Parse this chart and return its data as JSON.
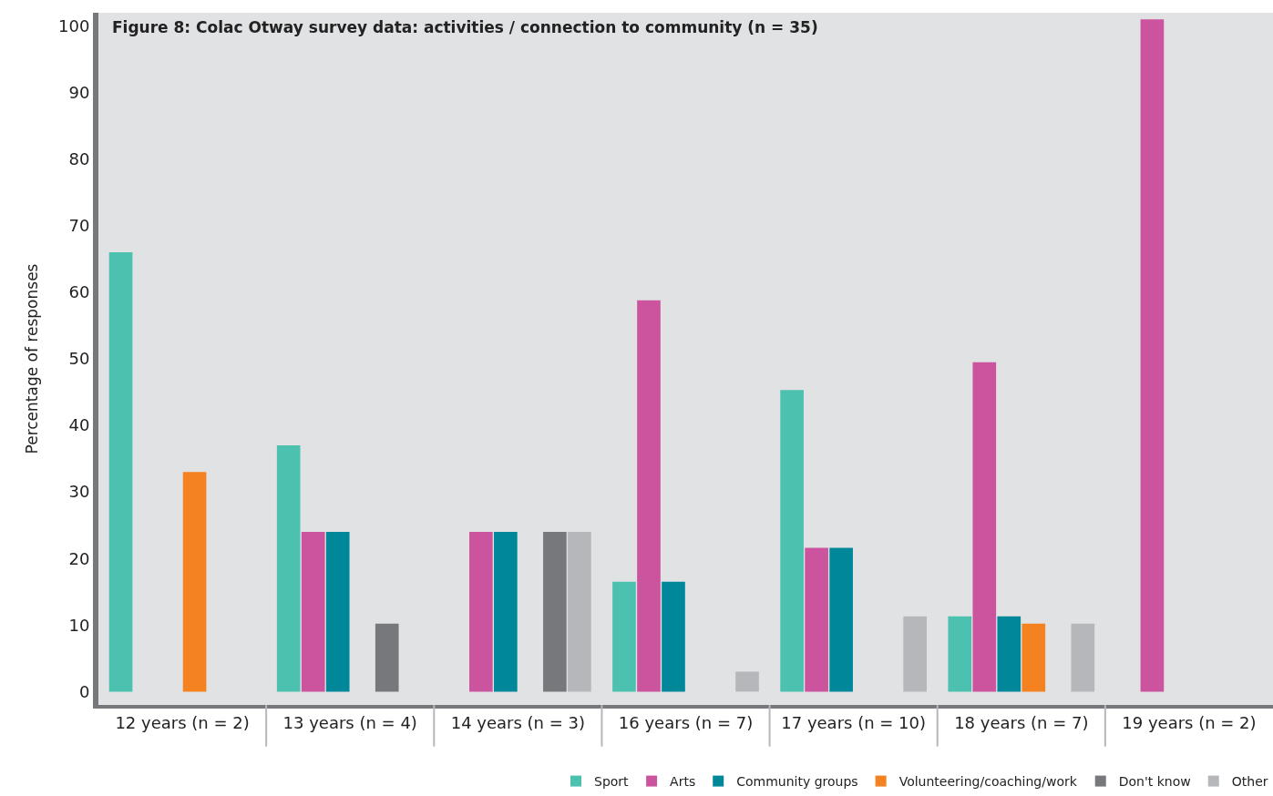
{
  "chart_data": {
    "type": "bar",
    "title": "Figure 8: Colac Otway survey data: activities / connection to community (n = 35)",
    "ylabel": "Percentage of responses",
    "categories": [
      "12 years (n = 2)",
      "13 years (n = 4)",
      "14 years (n = 3)",
      "16 years (n = 7)",
      "17 years (n = 10)",
      "18 years (n = 7)",
      "19 years (n = 2)"
    ],
    "series": [
      {
        "name": "Sport",
        "color": "#4cc1b0",
        "values": [
          66,
          37,
          0,
          16.5,
          45.3,
          11.3,
          0
        ]
      },
      {
        "name": "Arts",
        "color": "#cc549e",
        "values": [
          0,
          24,
          24,
          58.8,
          21.6,
          49.5,
          101
        ]
      },
      {
        "name": "Community groups",
        "color": "#00889a",
        "values": [
          0,
          24,
          24,
          16.5,
          21.6,
          11.3,
          0
        ]
      },
      {
        "name": "Volunteering/coaching/work",
        "color": "#f58220",
        "values": [
          33,
          0,
          0,
          0,
          0,
          10.2,
          0
        ]
      },
      {
        "name": "Don't know",
        "color": "#77787b",
        "values": [
          0,
          10.2,
          24,
          0,
          0,
          0,
          0
        ]
      },
      {
        "name": "Other",
        "color": "#b6b7ba",
        "values": [
          0,
          0,
          24,
          3,
          11.3,
          10.2,
          0
        ]
      }
    ],
    "ylim": [
      -2,
      102
    ],
    "yticks": [
      0,
      10,
      20,
      30,
      40,
      50,
      60,
      70,
      80,
      90,
      100
    ],
    "grid": false,
    "legend": "bottom"
  }
}
